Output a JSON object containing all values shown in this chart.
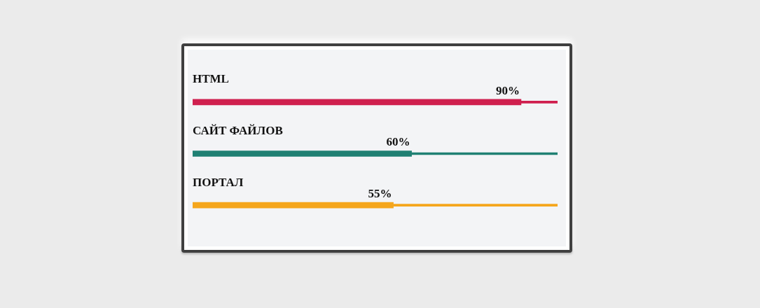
{
  "chart_data": {
    "type": "bar",
    "orientation": "horizontal",
    "stacked": true,
    "categories": [
      "HTML",
      "САЙТ ФАЙЛОВ",
      "ПОРТАЛ"
    ],
    "series": [
      {
        "colors": [
          "#cf1f4e",
          "#1f8073",
          "#f5a61c"
        ],
        "values": [
          90,
          60,
          55
        ],
        "value_labels": [
          "90%",
          "60%",
          "55%"
        ]
      },
      {
        "colors": [
          "#cf1f4e",
          "#1f8073",
          "#f5a61c"
        ],
        "values": [
          10,
          40,
          45
        ]
      }
    ],
    "tick_labels": "y"
  }
}
